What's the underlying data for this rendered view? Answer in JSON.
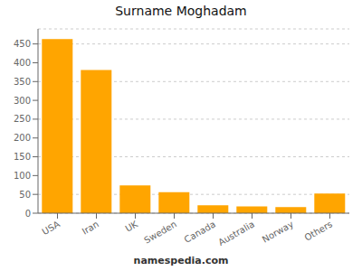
{
  "chart_data": {
    "type": "bar",
    "title": "Surname Moghadam",
    "categories": [
      "USA",
      "Iran",
      "UK",
      "Sweden",
      "Canada",
      "Australia",
      "Norway",
      "Others"
    ],
    "values": [
      463,
      381,
      74,
      56,
      21,
      18,
      16,
      52
    ],
    "color": "#FFA500",
    "ylim": [
      0,
      490
    ],
    "yticks": [
      0,
      50,
      100,
      150,
      200,
      250,
      300,
      350,
      400,
      450
    ],
    "grid": true,
    "annotations": [
      "namespedia.com"
    ]
  }
}
